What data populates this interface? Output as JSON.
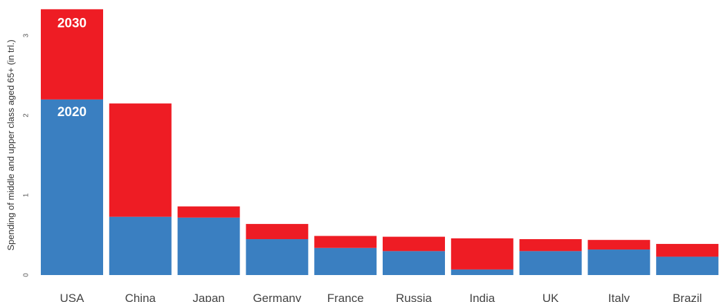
{
  "chart_data": {
    "type": "bar",
    "stacked": true,
    "ylabel": "Spending of middle and upper class aged 65+ (in trl.)",
    "ylim": [
      0,
      3.3
    ],
    "yticks": [
      "0",
      "1",
      "2",
      "3"
    ],
    "grid": false,
    "categories": [
      "USA",
      "China",
      "Japan",
      "Germany",
      "France",
      "Russia",
      "India",
      "UK",
      "Italy",
      "Brazil"
    ],
    "series": [
      {
        "name": "2020",
        "color": "#3a7fc1",
        "values": [
          2.2,
          0.73,
          0.72,
          0.45,
          0.34,
          0.3,
          0.07,
          0.3,
          0.32,
          0.23
        ]
      },
      {
        "name": "2030",
        "color": "#ee1c24",
        "values": [
          1.13,
          1.42,
          0.14,
          0.19,
          0.15,
          0.18,
          0.39,
          0.15,
          0.12,
          0.16
        ]
      }
    ]
  }
}
